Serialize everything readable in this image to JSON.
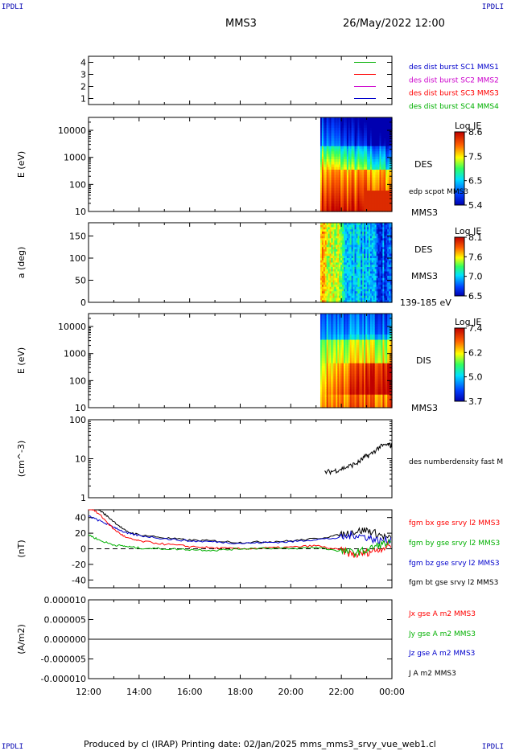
{
  "corner_labels": {
    "top_left": "IPDLI",
    "top_right": "IPDLI",
    "bottom_left": "IPDLI",
    "bottom_right": "IPDLI"
  },
  "header": {
    "mission": "MMS3",
    "datetime": "26/May/2022 12:00"
  },
  "footer": "Produced by cl (IRAP)   Printing date: 02/Jan/2025   mms_mms3_srvy_vue_web1.cl",
  "chart_data": [
    {
      "type": "line",
      "panel": "availability",
      "ylim": [
        0.5,
        4.5
      ],
      "yticks": [
        "1",
        "2",
        "3",
        "4"
      ],
      "legend": [
        {
          "name": "des dist burst SC1 MMS1",
          "color": "#0000cc",
          "marker": "#00b000"
        },
        {
          "name": "des dist burst SC2 MMS2",
          "color": "#cc00cc",
          "marker": "#ff0000"
        },
        {
          "name": "des dist burst SC3 MMS3",
          "color": "#ff0000",
          "marker": "#cc00cc"
        },
        {
          "name": "des dist burst SC4 MMS4",
          "color": "#00b000",
          "marker": "#0000cc"
        }
      ]
    },
    {
      "type": "heatmap",
      "panel": "des-energy",
      "ylabel": "E (eV)",
      "yscale": "log",
      "ylim": [
        10,
        30000
      ],
      "yticks": [
        "10",
        "100",
        "1000",
        "10000"
      ],
      "data_start": "21:10",
      "right_labels": [
        "DES",
        "edp scpot MMS3",
        "MMS3"
      ],
      "colorbar": {
        "title": "Log JE",
        "ticks": [
          "8.6",
          "7.5",
          "6.5",
          "5.4"
        ]
      }
    },
    {
      "type": "heatmap",
      "panel": "des-pitch",
      "ylabel": "a (deg)",
      "ylim": [
        0,
        180
      ],
      "yticks": [
        "0",
        "50",
        "100",
        "150"
      ],
      "data_start": "21:10",
      "right_labels": [
        "DES",
        "MMS3",
        "139-185 eV"
      ],
      "colorbar": {
        "title": "Log JE",
        "ticks": [
          "8.1",
          "7.6",
          "7.0",
          "6.5"
        ]
      }
    },
    {
      "type": "heatmap",
      "panel": "dis-energy",
      "ylabel": "E (eV)",
      "yscale": "log",
      "ylim": [
        10,
        30000
      ],
      "yticks": [
        "10",
        "100",
        "1000",
        "10000"
      ],
      "data_start": "21:10",
      "right_labels": [
        "DIS",
        "MMS3"
      ],
      "colorbar": {
        "title": "Log JE",
        "ticks": [
          "7.4",
          "6.2",
          "5.0",
          "3.7"
        ]
      }
    },
    {
      "type": "line",
      "panel": "density",
      "ylabel": "(cm^-3)",
      "yscale": "log",
      "ylim": [
        1,
        100
      ],
      "yticks": [
        "1",
        "10",
        "100"
      ],
      "series": [
        {
          "name": "des numberdensity fast M",
          "color": "#000000",
          "x": [
            "21:20",
            "21:40",
            "22:00",
            "22:20",
            "22:40",
            "22:55",
            "23:10",
            "23:30",
            "23:50",
            "00:00"
          ],
          "values": [
            4.5,
            4.8,
            5.5,
            6.5,
            8.0,
            11,
            13,
            20,
            23,
            22
          ]
        }
      ]
    },
    {
      "type": "line",
      "panel": "magnetic-field",
      "ylabel": "(nT)",
      "ylim": [
        -50,
        50
      ],
      "yticks": [
        "-40",
        "-20",
        "0",
        "20",
        "40"
      ],
      "series": [
        {
          "name": "fgm bx gse srvy l2 MMS3",
          "color": "#ff0000",
          "x": [
            "12:00",
            "12:30",
            "13:00",
            "13:30",
            "14:00",
            "15:00",
            "16:00",
            "17:00",
            "18:00",
            "19:00",
            "20:00",
            "21:00",
            "22:00",
            "22:30",
            "23:00",
            "23:30",
            "00:00"
          ],
          "values": [
            55,
            42,
            25,
            14,
            10,
            6,
            3,
            1,
            0,
            1,
            2,
            4,
            -2,
            -8,
            -5,
            0,
            5
          ]
        },
        {
          "name": "fgm by gse srvy l2 MMS3",
          "color": "#00b000",
          "x": [
            "12:00",
            "12:30",
            "13:00",
            "13:30",
            "14:00",
            "15:00",
            "16:00",
            "17:00",
            "18:00",
            "19:00",
            "20:00",
            "21:00",
            "22:00",
            "22:30",
            "23:00",
            "23:30",
            "00:00"
          ],
          "values": [
            18,
            10,
            5,
            3,
            1,
            0,
            -1,
            -2,
            0,
            1,
            0,
            2,
            -3,
            -5,
            -2,
            5,
            8
          ]
        },
        {
          "name": "fgm bz gse srvy l2 MMS3",
          "color": "#0000cc",
          "x": [
            "12:00",
            "12:30",
            "13:00",
            "13:30",
            "14:00",
            "15:00",
            "16:00",
            "17:00",
            "18:00",
            "19:00",
            "20:00",
            "21:00",
            "22:00",
            "22:30",
            "23:00",
            "23:30",
            "00:00"
          ],
          "values": [
            42,
            35,
            28,
            20,
            17,
            13,
            10,
            9,
            7,
            8,
            9,
            12,
            14,
            18,
            15,
            10,
            12
          ]
        },
        {
          "name": "fgm bt gse srvy l2 MMS3",
          "color": "#000000",
          "x": [
            "12:00",
            "12:30",
            "13:00",
            "13:30",
            "14:00",
            "15:00",
            "16:00",
            "17:00",
            "18:00",
            "19:00",
            "20:00",
            "21:00",
            "22:00",
            "22:30",
            "23:00",
            "23:30",
            "00:00"
          ],
          "values": [
            60,
            48,
            35,
            22,
            18,
            14,
            11,
            10,
            8,
            9,
            10,
            13,
            18,
            22,
            24,
            18,
            12
          ]
        }
      ]
    },
    {
      "type": "line",
      "panel": "current-density",
      "ylabel": "(A/m2)",
      "ylim": [
        -1e-05,
        1e-05
      ],
      "yticks": [
        "-0.000010",
        "-0.000005",
        "0.000000",
        "0.000005",
        "0.000010"
      ],
      "series": [
        {
          "name": "Jx gse A m2 MMS3",
          "color": "#ff0000",
          "values": [
            0,
            0
          ]
        },
        {
          "name": "Jy gse A m2 MMS3",
          "color": "#00b000",
          "values": [
            0,
            0
          ]
        },
        {
          "name": "Jz gse A m2 MMS3",
          "color": "#0000cc",
          "values": [
            0,
            0
          ]
        },
        {
          "name": "J A m2 MMS3",
          "color": "#000000",
          "values": [
            0,
            0
          ]
        }
      ]
    }
  ],
  "xaxis": {
    "ticks": [
      "12:00",
      "14:00",
      "16:00",
      "18:00",
      "20:00",
      "22:00",
      "00:00"
    ]
  }
}
